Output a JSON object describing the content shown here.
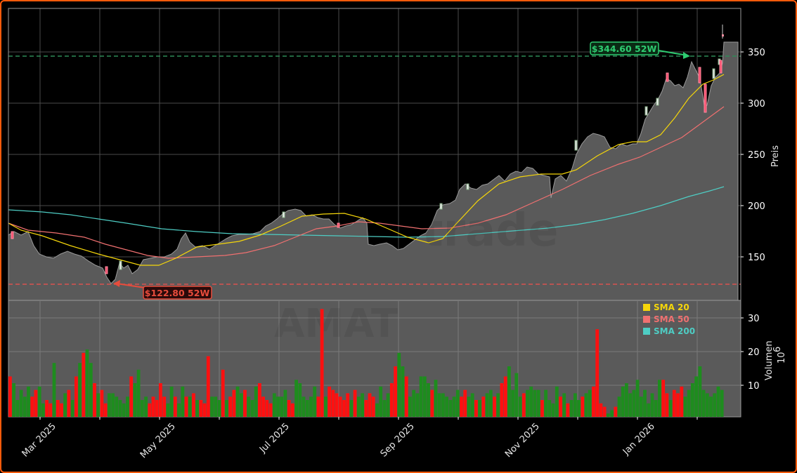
{
  "chart_data": [
    {
      "type": "candlestick",
      "title": "",
      "ticker_watermark": "AMAT",
      "xlabel": "",
      "ylabel": "Preis",
      "ylim": [
        113,
        386
      ],
      "yticks": [
        150,
        200,
        250,
        300,
        350
      ],
      "x_tick_labels": [
        "Mar 2025",
        "May 2025",
        "Jul 2025",
        "Sep 2025",
        "Nov 2025",
        "Jan 2026"
      ],
      "grid": true,
      "background": "#000000",
      "price_area_fill": "#5a5a5a",
      "annotations": [
        {
          "text": "$344.60 52W",
          "type": "52w-high",
          "value": 344.6,
          "color": "#2ecc71"
        },
        {
          "text": "$122.80 52W",
          "type": "52w-low",
          "value": 122.8,
          "color": "#e74c3c"
        }
      ],
      "legend": {
        "position": "lower-right of price panel",
        "entries": [
          {
            "label": "SMA 20",
            "color": "#f5d60a"
          },
          {
            "label": "SMA 50",
            "color": "#f07070"
          },
          {
            "label": "SMA 200",
            "color": "#4ecdc4"
          }
        ]
      },
      "series": [
        {
          "name": "Close (approx.)",
          "x": [
            "2025-02-10",
            "2025-02-20",
            "2025-03-01",
            "2025-03-15",
            "2025-04-01",
            "2025-04-08",
            "2025-04-15",
            "2025-05-01",
            "2025-05-15",
            "2025-06-01",
            "2025-06-15",
            "2025-07-01",
            "2025-07-15",
            "2025-08-01",
            "2025-08-14",
            "2025-08-15",
            "2025-09-01",
            "2025-09-15",
            "2025-10-01",
            "2025-10-15",
            "2025-11-01",
            "2025-11-15",
            "2025-12-01",
            "2025-12-15",
            "2026-01-01",
            "2026-01-10",
            "2026-01-20",
            "2026-02-01",
            "2026-02-10",
            "2026-02-15"
          ],
          "values": [
            172,
            165,
            152,
            150,
            140,
            125,
            140,
            148,
            158,
            170,
            160,
            175,
            190,
            182,
            185,
            160,
            158,
            170,
            205,
            225,
            232,
            220,
            262,
            255,
            262,
            300,
            328,
            320,
            290,
            345
          ]
        },
        {
          "name": "SMA 20",
          "x": [
            "2025-02-10",
            "2025-03-15",
            "2025-04-15",
            "2025-05-15",
            "2025-06-15",
            "2025-07-15",
            "2025-08-15",
            "2025-09-05",
            "2025-10-01",
            "2025-10-15",
            "2025-11-15",
            "2025-12-15",
            "2026-01-01",
            "2026-01-15",
            "2026-02-01",
            "2026-02-12"
          ],
          "values": [
            181,
            155,
            142,
            152,
            163,
            190,
            182,
            162,
            178,
            215,
            230,
            260,
            265,
            290,
            315,
            326
          ]
        },
        {
          "name": "SMA 50",
          "x": [
            "2025-02-10",
            "2025-03-15",
            "2025-04-15",
            "2025-05-15",
            "2025-06-15",
            "2025-07-15",
            "2025-08-15",
            "2025-09-15",
            "2025-10-15",
            "2025-11-15",
            "2025-12-15",
            "2026-01-15",
            "2026-02-12"
          ],
          "values": [
            175,
            170,
            155,
            149,
            152,
            170,
            183,
            178,
            185,
            215,
            242,
            265,
            295
          ]
        },
        {
          "name": "SMA 200",
          "x": [
            "2025-02-10",
            "2025-03-15",
            "2025-04-15",
            "2025-05-15",
            "2025-06-15",
            "2025-07-15",
            "2025-08-15",
            "2025-09-15",
            "2025-10-15",
            "2025-11-15",
            "2025-12-15",
            "2026-01-15",
            "2026-02-12"
          ],
          "values": [
            195,
            192,
            187,
            180,
            174,
            171,
            169,
            168,
            172,
            177,
            190,
            205,
            217
          ]
        }
      ]
    },
    {
      "type": "bar",
      "title": "",
      "ylabel": "Volumen",
      "yscale_label": "10^6",
      "ylim": [
        0,
        35
      ],
      "yticks": [
        10,
        20,
        30
      ],
      "grid": true,
      "up_color": "#1e8c1e",
      "down_color": "#ff1010",
      "note": "Daily volume in millions, approximated from bar heights",
      "values_millions": [
        12,
        10,
        5,
        8,
        6,
        9,
        6,
        8,
        9,
        4,
        5,
        4,
        16,
        5,
        4,
        7,
        8,
        5,
        12,
        16,
        19,
        20,
        16,
        10,
        7,
        8,
        4,
        7,
        7,
        6,
        5,
        4,
        6,
        12,
        10,
        14,
        5,
        6,
        4,
        6,
        5,
        10,
        6,
        4,
        9,
        6,
        4,
        9,
        6,
        6,
        7,
        5,
        5,
        4,
        18,
        6,
        6,
        5,
        14,
        5,
        6,
        8,
        9,
        7,
        8,
        6,
        5,
        9,
        10,
        6,
        5,
        4,
        7,
        6,
        6,
        8,
        5,
        4,
        11,
        10,
        6,
        5,
        6,
        9,
        6,
        32,
        6,
        9,
        8,
        7,
        6,
        5,
        7,
        5,
        8,
        6,
        7,
        5,
        7,
        6,
        4,
        9,
        5,
        7,
        10,
        15,
        19,
        15,
        12,
        6,
        8,
        7,
        12,
        12,
        10,
        8,
        11,
        7,
        7,
        6,
        5,
        6,
        8,
        6,
        8,
        6,
        7,
        5,
        5,
        6,
        7,
        8,
        6,
        7,
        10,
        12,
        15,
        8,
        13,
        6,
        7,
        8,
        9,
        8,
        8,
        5,
        8,
        5,
        4,
        9,
        6,
        7,
        4,
        5,
        7,
        5,
        6,
        7,
        8,
        9,
        26,
        4,
        3,
        1,
        2,
        3,
        6,
        9,
        10,
        7,
        8,
        11,
        6,
        8,
        4,
        7,
        5,
        11,
        11,
        7,
        5,
        8,
        7,
        9,
        6,
        8,
        10,
        12,
        15,
        8,
        7,
        6,
        7,
        9,
        8
      ]
    }
  ],
  "price_axis": {
    "label": "Preis",
    "ticks": [
      "150",
      "200",
      "250",
      "300",
      "350"
    ]
  },
  "volume_axis": {
    "label": "Volumen",
    "unit_label": "10",
    "unit_exp": "6",
    "ticks": [
      "10",
      "20",
      "30"
    ]
  },
  "x_axis": {
    "ticks": [
      "Mar 2025",
      "May 2025",
      "Jul 2025",
      "Sep 2025",
      "Nov 2025",
      "Jan 2026"
    ]
  },
  "annotations": {
    "high": "$344.60 52W",
    "low": "$122.80 52W"
  },
  "legend": {
    "sma20": "SMA 20",
    "sma50": "SMA 50",
    "sma200": "SMA 200"
  },
  "watermark": {
    "ticker": "AMAT",
    "brand": "trade"
  },
  "colors": {
    "frame": "#ff5a0a",
    "high": "#2ecc71",
    "low": "#e74c3c",
    "sma20": "#f5d60a",
    "sma50": "#f07070",
    "sma200": "#4ecdc4",
    "vol_up": "#1e8c1e",
    "vol_down": "#ff1010"
  }
}
